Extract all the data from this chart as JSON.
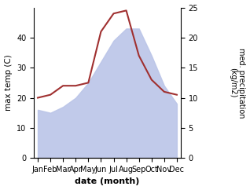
{
  "months": [
    "Jan",
    "Feb",
    "Mar",
    "Apr",
    "May",
    "Jun",
    "Jul",
    "Aug",
    "Sep",
    "Oct",
    "Nov",
    "Dec"
  ],
  "month_indices": [
    0,
    1,
    2,
    3,
    4,
    5,
    6,
    7,
    8,
    9,
    10,
    11
  ],
  "max_temp": [
    16,
    15,
    17,
    20,
    25,
    32,
    39,
    43,
    43,
    34,
    24,
    18
  ],
  "precip": [
    10,
    10.5,
    12,
    12,
    12.5,
    21,
    24,
    24.5,
    17,
    13,
    11,
    10.5
  ],
  "temp_fill_color": "#bbc5e8",
  "precip_color": "#a03030",
  "temp_ylim": [
    0,
    50
  ],
  "precip_ylim": [
    0,
    25
  ],
  "temp_yticks": [
    0,
    10,
    20,
    30,
    40
  ],
  "precip_yticks": [
    0,
    5,
    10,
    15,
    20,
    25
  ],
  "xlabel": "date (month)",
  "ylabel_left": "max temp (C)",
  "ylabel_right": "med. precipitation\n(kg/m2)",
  "background_color": "#ffffff"
}
